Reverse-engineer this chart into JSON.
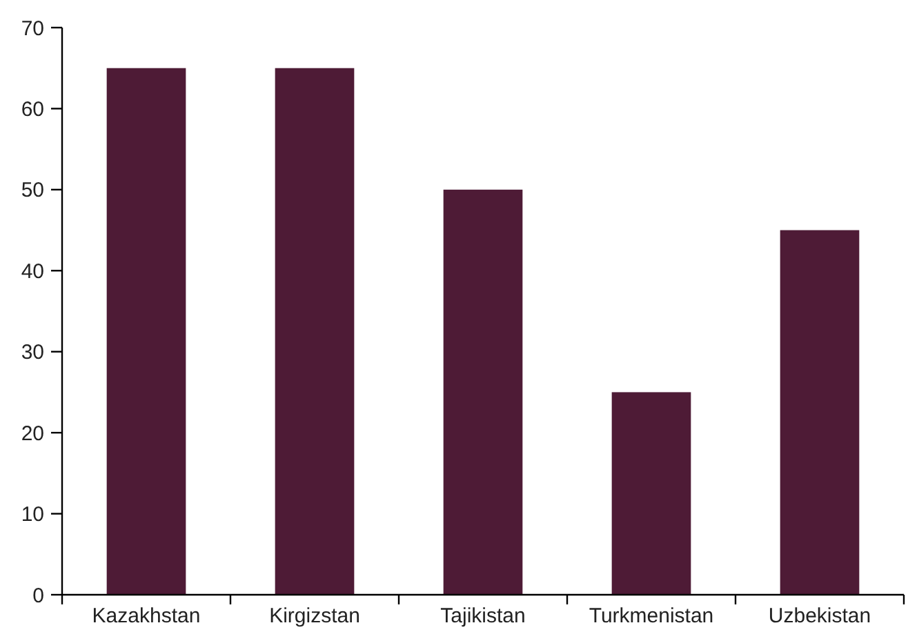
{
  "chart_data": {
    "type": "bar",
    "categories": [
      "Kazakhstan",
      "Kirgizstan",
      "Tajikistan",
      "Turkmenistan",
      "Uzbekistan"
    ],
    "values": [
      65,
      65,
      50,
      25,
      45
    ],
    "color": "#4e1b36",
    "ylim": [
      0,
      70
    ],
    "yticks": [
      0,
      10,
      20,
      30,
      40,
      50,
      60,
      70
    ],
    "grid": false
  }
}
